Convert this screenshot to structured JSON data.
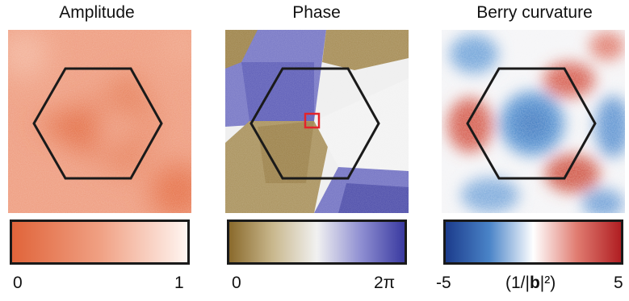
{
  "panels": [
    {
      "id": "amplitude",
      "title": "Amplitude",
      "colorbar": {
        "min_label": "0",
        "max_label": "1",
        "unit_label": "",
        "colors": [
          "#e0643a",
          "#f0a083",
          "#fff5f1"
        ]
      }
    },
    {
      "id": "phase",
      "title": "Phase",
      "colorbar": {
        "min_label": "0",
        "max_label": "2π",
        "unit_label": "",
        "colors": [
          "#8a6a2c",
          "#c9b88e",
          "#f1f1f1",
          "#8f8fd2",
          "#3a3aa0"
        ]
      }
    },
    {
      "id": "berry",
      "title": "Berry curvature",
      "colorbar": {
        "min_label": "-5",
        "max_label": "5",
        "unit_label_prefix": "(1/|",
        "unit_label_bold": "b",
        "unit_label_suffix": "|²)",
        "colors": [
          "#1c3c8c",
          "#4a84c8",
          "#ffffff",
          "#e07b70",
          "#b01e22"
        ]
      }
    }
  ]
}
